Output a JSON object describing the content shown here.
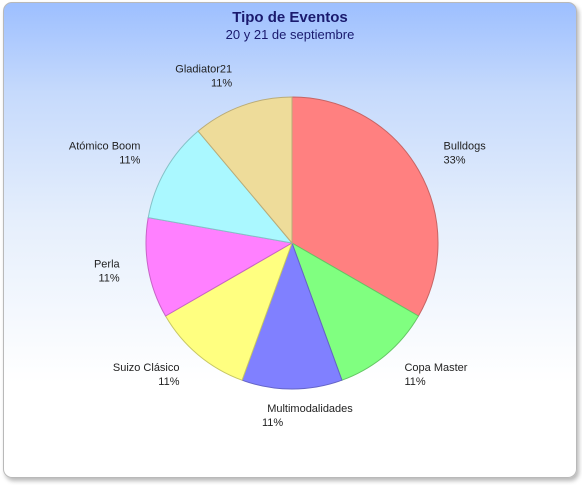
{
  "chart_data": {
    "type": "pie",
    "title": "Tipo de Eventos",
    "subtitle": "20 y 21 de septiembre",
    "slices": [
      {
        "label": "Bulldogs",
        "value": 33,
        "percent_label": "33%",
        "color": "#ff8080"
      },
      {
        "label": "Copa Master",
        "value": 11,
        "percent_label": "11%",
        "color": "#80ff80"
      },
      {
        "label": "Multimodalidades",
        "value": 11,
        "percent_label": "11%",
        "color": "#8080ff"
      },
      {
        "label": "Suizo Clásico",
        "value": 11,
        "percent_label": "11%",
        "color": "#ffff80"
      },
      {
        "label": "Perla",
        "value": 11,
        "percent_label": "11%",
        "color": "#ff80ff"
      },
      {
        "label": "Atómico Boom",
        "value": 11,
        "percent_label": "11%",
        "color": "#aaf8ff"
      },
      {
        "label": "Gladiator21",
        "value": 11,
        "percent_label": "11%",
        "color": "#eedc9a"
      }
    ]
  }
}
